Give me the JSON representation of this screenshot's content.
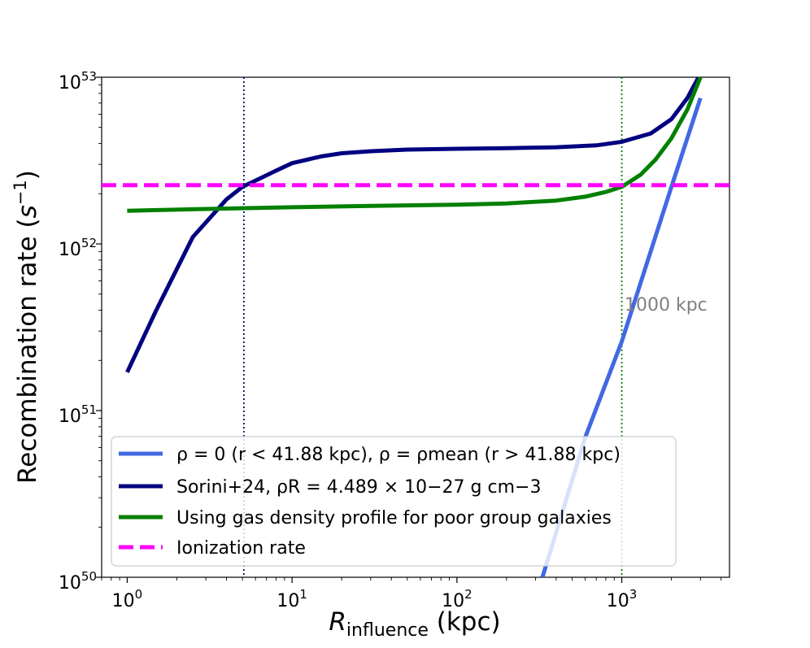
{
  "chart_data": {
    "type": "line",
    "xscale": "log",
    "yscale": "log",
    "xlim": [
      0.7,
      4500
    ],
    "ylim": [
      1e+50,
      1e+53
    ],
    "xlabel_main": "R",
    "xlabel_sub": "influence",
    "xlabel_unit": " (kpc)",
    "ylabel_main": "Recombination rate (",
    "ylabel_s": "s",
    "ylabel_exp": "−1",
    "ylabel_close": ")",
    "x_ticks": [
      {
        "value": 1,
        "base": "10",
        "exp": "0"
      },
      {
        "value": 10,
        "base": "10",
        "exp": "1"
      },
      {
        "value": 100,
        "base": "10",
        "exp": "2"
      },
      {
        "value": 1000,
        "base": "10",
        "exp": "3"
      }
    ],
    "y_ticks": [
      {
        "value": 1e+50,
        "base": "10",
        "exp": "50"
      },
      {
        "value": 1e+51,
        "base": "10",
        "exp": "51"
      },
      {
        "value": 1e+52,
        "base": "10",
        "exp": "52"
      },
      {
        "value": 1e+53,
        "base": "10",
        "exp": "53"
      }
    ],
    "series": [
      {
        "name": "rho0_mean",
        "color": "#4169e1",
        "dash": "solid",
        "points": [
          [
            330,
            1e+50
          ],
          [
            600,
            6.9e+50
          ],
          [
            1000,
            2.6e+51
          ],
          [
            2000,
            2.2e+52
          ],
          [
            3000,
            7.5e+52
          ]
        ]
      },
      {
        "name": "sorini",
        "color": "#000080",
        "dash": "solid",
        "points": [
          [
            1,
            1.7e+51
          ],
          [
            1.5,
            4e+51
          ],
          [
            2.5,
            1.1e+52
          ],
          [
            4,
            1.85e+52
          ],
          [
            5,
            2.2e+52
          ],
          [
            6,
            2.4e+52
          ],
          [
            8,
            2.75e+52
          ],
          [
            10,
            3.05e+52
          ],
          [
            15,
            3.35e+52
          ],
          [
            20,
            3.5e+52
          ],
          [
            30,
            3.6e+52
          ],
          [
            50,
            3.68e+52
          ],
          [
            100,
            3.72e+52
          ],
          [
            200,
            3.75e+52
          ],
          [
            400,
            3.8e+52
          ],
          [
            700,
            3.9e+52
          ],
          [
            1000,
            4.1e+52
          ],
          [
            1500,
            4.6e+52
          ],
          [
            2000,
            5.6e+52
          ],
          [
            2500,
            7.5e+52
          ],
          [
            3000,
            1.05e+53
          ]
        ]
      },
      {
        "name": "poor_group",
        "color": "#008000",
        "dash": "solid",
        "points": [
          [
            1,
            1.58e+52
          ],
          [
            3,
            1.62e+52
          ],
          [
            10,
            1.66e+52
          ],
          [
            30,
            1.69e+52
          ],
          [
            100,
            1.72e+52
          ],
          [
            200,
            1.75e+52
          ],
          [
            400,
            1.82e+52
          ],
          [
            600,
            1.92e+52
          ],
          [
            800,
            2.05e+52
          ],
          [
            1000,
            2.2e+52
          ],
          [
            1300,
            2.6e+52
          ],
          [
            1600,
            3.2e+52
          ],
          [
            2000,
            4.3e+52
          ],
          [
            2500,
            6.4e+52
          ],
          [
            3000,
            1e+53
          ]
        ]
      },
      {
        "name": "ionization",
        "color": "#ff00ff",
        "dash": "dashed",
        "points": [
          [
            0.7,
            2.25e+52
          ],
          [
            4500,
            2.25e+52
          ]
        ]
      }
    ],
    "vlines": [
      {
        "x": 5.1,
        "color": "#000080"
      },
      {
        "x": 1000,
        "color": "#008000"
      }
    ],
    "annotation": {
      "text": "1000 kpc",
      "x": 1000,
      "y": 4.3e+51,
      "color": "#808080"
    },
    "legend": {
      "placement": "lower-left",
      "entries": [
        {
          "series": "rho0_mean",
          "color": "#4169e1",
          "dash": "solid",
          "text": "ρ = 0 (r < 41.88 kpc), ρ = ρmean (r > 41.88 kpc)"
        },
        {
          "series": "sorini",
          "color": "#000080",
          "dash": "solid",
          "text": "Sorini+24, ρR = 4.489 × 10−27 g cm−3"
        },
        {
          "series": "poor_group",
          "color": "#008000",
          "dash": "solid",
          "text": "Using gas density profile for poor group galaxies"
        },
        {
          "series": "ionization",
          "color": "#ff00ff",
          "dash": "dashed",
          "text": "Ionization rate"
        }
      ]
    }
  }
}
